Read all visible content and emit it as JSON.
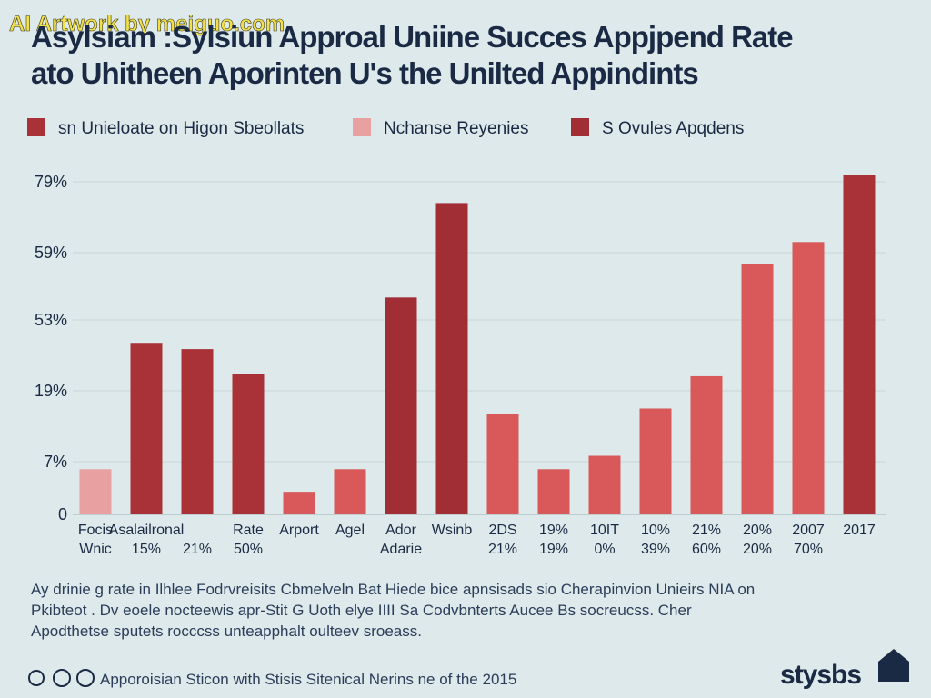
{
  "chart_data": {
    "type": "bar",
    "watermark": "AI Artwork by meiguo.com",
    "title": [
      "Asylsiam :Sylsiun Approal Uniine Succes Appjpend Rate",
      "ato Uhitheen Aporinten U's  the Unilted Appindints"
    ],
    "legend": [
      {
        "name": "sn Unieloate on Higon Sbeollats",
        "color": "#a83238"
      },
      {
        "name": "Nchanse Reyenies",
        "color": "#e8a0a0"
      },
      {
        "name": "S Ovules Apqdens",
        "color": "#a12d35"
      }
    ],
    "categories": [
      "Focis",
      "Asalailronal",
      null,
      "Rate",
      "Arport",
      "Agel",
      "Ador",
      "Wsinb",
      "2DS",
      "19%",
      "10IT",
      "10%",
      "21%",
      "20%",
      "2007",
      "2017"
    ],
    "category_lines2": [
      "Wnic",
      "15%",
      "21%",
      "50%",
      null,
      null,
      "Adarie",
      null,
      "21%",
      "19%",
      "0%",
      "39%",
      "60%",
      "20%",
      "70%",
      null
    ],
    "values": [
      6,
      42,
      39,
      27,
      3,
      6,
      55,
      73,
      15,
      6,
      8,
      16,
      26,
      58,
      62,
      81
    ],
    "colors": [
      "#e8a0a0",
      "#a83238",
      "#a83238",
      "#a83238",
      "#d9595a",
      "#d9595a",
      "#a12d35",
      "#a12d35",
      "#d9595a",
      "#d9595a",
      "#d9595a",
      "#d9595a",
      "#d9595a",
      "#d9595a",
      "#d9595a",
      "#a83238"
    ],
    "ylim": [
      0,
      81
    ],
    "yticks": [
      0,
      {
        "value": 7,
        "label": "7%"
      },
      {
        "value": 19,
        "label": "19%"
      },
      {
        "value": 53,
        "label": "53%"
      },
      {
        "value": 59,
        "label": "59%"
      },
      {
        "value": 79,
        "label": "79%"
      }
    ],
    "grid": true,
    "footnote": [
      "Ay drinie g rate  in Ilhlee Fodrvreisits Cbmelveln Bat Hiede  bice apnsisads sio Cherapinvion Unieirs NIA on",
      "Pkibteot . Dv eoele nocteewis apr-Stit  G Uoth elye IIII Sa Codvbnterts  Aucee Bs socreucss. Cher",
      "Apodthetse sputets rocccss unteapphalt oulteev sroeass."
    ],
    "source": "Apporoisian Sticon with Stisis Sitenical Nerins ne of the 2015",
    "logo": "stysbs"
  }
}
